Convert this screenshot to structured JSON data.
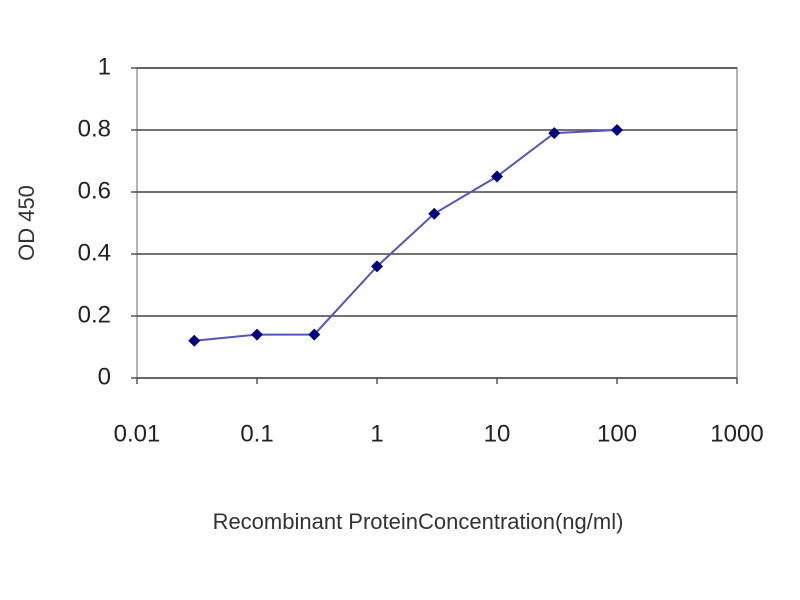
{
  "chart_data": {
    "type": "line",
    "x": [
      0.03,
      0.1,
      0.3,
      1,
      3,
      10,
      30,
      100
    ],
    "series": [
      {
        "name": "OD 450",
        "color": "#5555bb",
        "marker_color": "#000080",
        "values": [
          0.12,
          0.14,
          0.14,
          0.36,
          0.53,
          0.65,
          0.79,
          0.8
        ]
      }
    ],
    "xlabel": "Recombinant ProteinConcentration(ng/ml)",
    "ylabel": "OD 450",
    "xscale": "log",
    "xlim": [
      0.01,
      1000
    ],
    "xticks": [
      0.01,
      0.1,
      1,
      10,
      100,
      1000
    ],
    "ylim": [
      0,
      1
    ],
    "yticks": [
      0,
      0.2,
      0.4,
      0.6,
      0.8,
      1
    ],
    "grid": true
  }
}
